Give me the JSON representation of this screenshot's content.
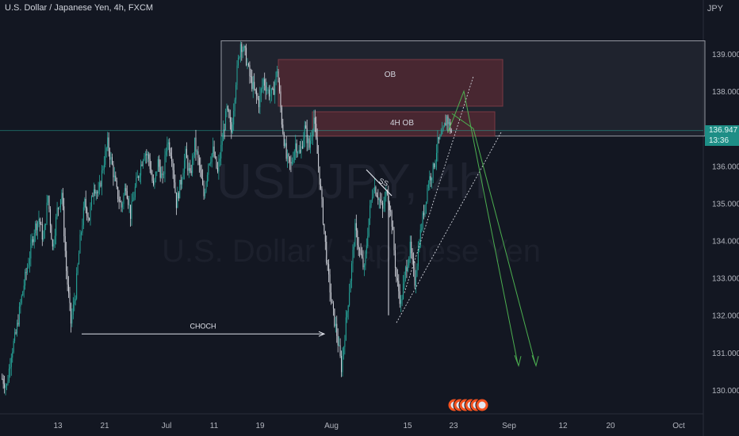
{
  "header": {
    "title": "U.S. Dollar / Japanese Yen, 4h, FXCM",
    "currency": "JPY"
  },
  "watermark": {
    "line1": "USDJPY, 4h",
    "line2": "U.S. Dollar / Japanese Yen"
  },
  "last_price": {
    "value": "136.947",
    "countdown": "13:36",
    "color": "#1e8e86"
  },
  "chart_data": {
    "type": "candlestick",
    "yaxis": {
      "ticks": [
        "139.000",
        "138.000",
        "137.000",
        "136.000",
        "135.000",
        "134.000",
        "133.000",
        "132.000",
        "131.000",
        "130.000"
      ],
      "ylim": [
        129.6,
        139.6
      ]
    },
    "xaxis": {
      "ticks": [
        "13",
        "21",
        "Jul",
        "11",
        "19",
        "Aug",
        "15",
        "23",
        "Sep",
        "12",
        "20",
        "Oct"
      ]
    },
    "colors": {
      "up": "#26a69a",
      "down": "#d1d4dc",
      "ob_zone": "#5a2a33",
      "range_zone": "#2a2e39"
    },
    "zones": [
      {
        "label": "OB",
        "price_low": 137.6,
        "price_high": 138.85
      },
      {
        "label": "4H OB",
        "price_low": 136.8,
        "price_high": 137.45
      },
      {
        "label": "",
        "price_low": 136.8,
        "price_high": 139.35
      }
    ],
    "annotations": [
      {
        "label": "CHOCH",
        "price": 131.5
      },
      {
        "label": "SS",
        "price": 135.6
      }
    ],
    "key_prices": [
      130.5,
      131.7,
      132.6,
      139.3,
      136.9,
      137.4
    ],
    "path": [
      [
        0,
        130.3
      ],
      [
        1,
        130.1
      ],
      [
        2,
        131.0
      ],
      [
        3,
        131.5
      ],
      [
        4,
        132.3
      ],
      [
        5,
        133.0
      ],
      [
        6,
        133.6
      ],
      [
        7,
        134.3
      ],
      [
        8,
        134.6
      ],
      [
        9,
        134.0
      ],
      [
        10,
        135.2
      ],
      [
        11,
        133.8
      ],
      [
        12,
        134.8
      ],
      [
        13,
        135.3
      ],
      [
        14,
        133.2
      ],
      [
        15,
        131.8
      ],
      [
        16,
        132.6
      ],
      [
        17,
        134.0
      ],
      [
        18,
        135.0
      ],
      [
        19,
        134.6
      ],
      [
        20,
        135.5
      ],
      [
        21,
        135.2
      ],
      [
        22,
        136.0
      ],
      [
        23,
        136.6
      ],
      [
        24,
        136.0
      ],
      [
        25,
        135.3
      ],
      [
        26,
        134.9
      ],
      [
        27,
        135.5
      ],
      [
        28,
        134.7
      ],
      [
        29,
        135.4
      ],
      [
        30,
        135.9
      ],
      [
        31,
        136.4
      ],
      [
        32,
        136.2
      ],
      [
        33,
        135.4
      ],
      [
        34,
        136.1
      ],
      [
        35,
        135.6
      ],
      [
        36,
        136.7
      ],
      [
        37,
        136.3
      ],
      [
        38,
        135.0
      ],
      [
        39,
        135.6
      ],
      [
        40,
        136.3
      ],
      [
        41,
        135.7
      ],
      [
        42,
        136.6
      ],
      [
        43,
        136.0
      ],
      [
        44,
        135.2
      ],
      [
        45,
        136.1
      ],
      [
        46,
        136.4
      ],
      [
        47,
        135.8
      ],
      [
        48,
        136.7
      ],
      [
        49,
        137.5
      ],
      [
        50,
        136.9
      ],
      [
        51,
        138.3
      ],
      [
        52,
        139.3
      ],
      [
        53,
        139.0
      ],
      [
        54,
        138.4
      ],
      [
        55,
        138.0
      ],
      [
        56,
        137.7
      ],
      [
        57,
        138.3
      ],
      [
        58,
        138.0
      ],
      [
        59,
        137.9
      ],
      [
        60,
        138.6
      ],
      [
        61,
        137.2
      ],
      [
        62,
        136.2
      ],
      [
        63,
        136.0
      ],
      [
        64,
        136.6
      ],
      [
        65,
        136.3
      ],
      [
        66,
        137.0
      ],
      [
        67,
        136.5
      ],
      [
        68,
        137.3
      ],
      [
        69,
        136.0
      ],
      [
        70,
        134.6
      ],
      [
        71,
        133.2
      ],
      [
        72,
        132.2
      ],
      [
        73,
        131.5
      ],
      [
        74,
        130.6
      ],
      [
        75,
        131.8
      ],
      [
        76,
        133.0
      ],
      [
        77,
        134.3
      ],
      [
        78,
        133.7
      ],
      [
        79,
        133.2
      ],
      [
        80,
        134.6
      ],
      [
        81,
        135.5
      ],
      [
        82,
        135.2
      ],
      [
        83,
        134.8
      ],
      [
        84,
        135.4
      ],
      [
        85,
        134.5
      ],
      [
        86,
        133.0
      ],
      [
        87,
        132.3
      ],
      [
        88,
        133.2
      ],
      [
        89,
        133.8
      ],
      [
        90,
        132.9
      ],
      [
        91,
        134.0
      ],
      [
        92,
        134.8
      ],
      [
        93,
        135.6
      ],
      [
        94,
        135.9
      ],
      [
        95,
        136.6
      ],
      [
        96,
        136.8
      ],
      [
        97,
        137.3
      ],
      [
        98,
        136.9
      ]
    ]
  }
}
